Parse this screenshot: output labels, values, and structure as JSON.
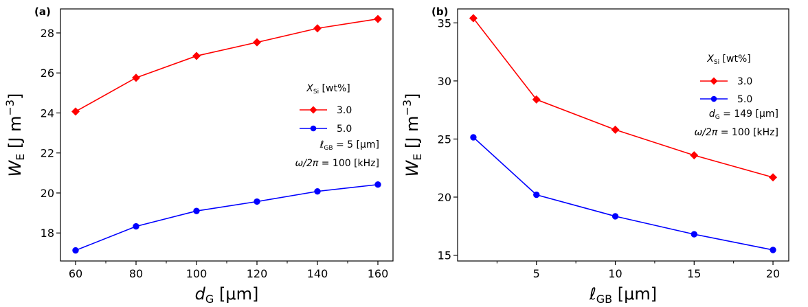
{
  "chart_data": [
    {
      "type": "line",
      "panel_label": "(a)",
      "x": [
        60,
        80,
        100,
        120,
        140,
        160
      ],
      "xlabel": {
        "main": "d",
        "sub": "G",
        "unit": " [μm]"
      },
      "ylabel": {
        "main": "W",
        "sub": "E",
        "unit": " [J m",
        "sup": "−3",
        "close": "]"
      },
      "xlim": [
        55,
        165
      ],
      "ylim": [
        16.6,
        29.2
      ],
      "xticks": [
        60,
        80,
        100,
        120,
        140,
        160
      ],
      "yticks": [
        18,
        20,
        22,
        24,
        26,
        28
      ],
      "x_minor_ticks": [
        70,
        90,
        110,
        130,
        150
      ],
      "grid": false,
      "legend_position": "right",
      "legend_title": {
        "main": "X",
        "sub": "Si",
        "unit": " [wt%]"
      },
      "series": [
        {
          "name": "3.0",
          "color": "#ff0000",
          "marker": "diamond",
          "values": [
            24.07,
            25.76,
            26.85,
            27.53,
            28.23,
            28.7
          ]
        },
        {
          "name": "5.0",
          "color": "#0000ff",
          "marker": "circle",
          "values": [
            17.13,
            18.33,
            19.1,
            19.57,
            20.08,
            20.42
          ]
        }
      ],
      "annotations": [
        {
          "main": "ℓ",
          "sub": "GB",
          "rest": " = 5 [μm]"
        },
        {
          "main": "ω/2π",
          "sub": "",
          "rest": " = 100 [kHz]"
        }
      ]
    },
    {
      "type": "line",
      "panel_label": "(b)",
      "x": [
        1,
        5,
        10,
        15,
        20
      ],
      "xlabel": {
        "main": "ℓ",
        "sub": "GB",
        "unit": " [μm]"
      },
      "ylabel": {
        "main": "W",
        "sub": "E",
        "unit": " [J m",
        "sup": "−3",
        "close": "]"
      },
      "xlim": [
        0,
        21
      ],
      "ylim": [
        14.5,
        36.2
      ],
      "xticks": [
        5,
        10,
        15,
        20
      ],
      "yticks": [
        15,
        20,
        25,
        30,
        35
      ],
      "x_minor_ticks": [
        2.5,
        7.5,
        12.5,
        17.5
      ],
      "grid": false,
      "legend_position": "top-right",
      "legend_title": {
        "main": "X",
        "sub": "Si",
        "unit": " [wt%]"
      },
      "series": [
        {
          "name": "3.0",
          "color": "#ff0000",
          "marker": "diamond",
          "values": [
            35.4,
            28.4,
            25.8,
            23.6,
            21.7
          ]
        },
        {
          "name": "5.0",
          "color": "#0000ff",
          "marker": "circle",
          "values": [
            25.15,
            20.2,
            18.35,
            16.8,
            15.45
          ]
        }
      ],
      "annotations": [
        {
          "main": "d",
          "sub": "G",
          "rest": " = 149 [μm]"
        },
        {
          "main": "ω/2π",
          "sub": "",
          "rest": " = 100 [kHz]"
        }
      ]
    }
  ]
}
